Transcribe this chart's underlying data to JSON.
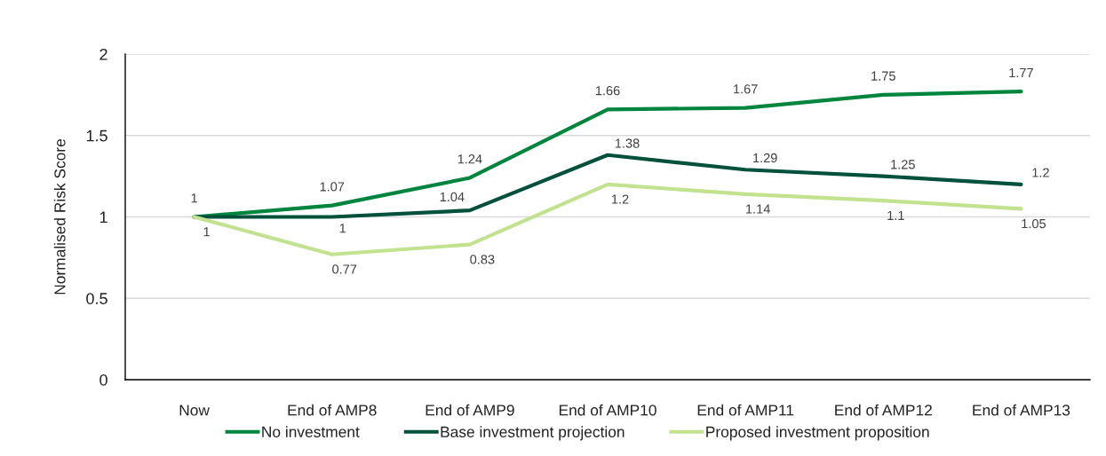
{
  "chart_data": {
    "type": "line",
    "ylabel": "Normalised Risk Score",
    "categories": [
      "Now",
      "End of AMP8",
      "End of AMP9",
      "End of AMP10",
      "End of AMP11",
      "End of AMP12",
      "End of AMP13"
    ],
    "series": [
      {
        "name": "No investment",
        "color": "#00853f",
        "values": [
          1,
          1.07,
          1.24,
          1.66,
          1.67,
          1.75,
          1.77
        ],
        "value_labels": [
          "1",
          "1.07",
          "1.24",
          "1.66",
          "1.67",
          "1.75",
          "1.77"
        ]
      },
      {
        "name": "Base investment projection",
        "color": "#00503c",
        "values": [
          1,
          1,
          1.04,
          1.38,
          1.29,
          1.25,
          1.2
        ],
        "value_labels": [
          null,
          "1",
          "1.04",
          "1.38",
          "1.29",
          "1.25",
          "1.2"
        ]
      },
      {
        "name": "Proposed investment proposition",
        "color": "#c3e28f",
        "values": [
          1,
          0.77,
          0.83,
          1.2,
          1.14,
          1.1,
          1.05
        ],
        "value_labels": [
          "1",
          "0.77",
          "0.83",
          "1.2",
          "1.14",
          "1.1",
          "1.05"
        ]
      }
    ],
    "ylim": [
      0,
      2
    ],
    "yticks": [
      0,
      0.5,
      1,
      1.5,
      2
    ],
    "grid": "y",
    "legend": "bottom",
    "line_style": "solid"
  }
}
